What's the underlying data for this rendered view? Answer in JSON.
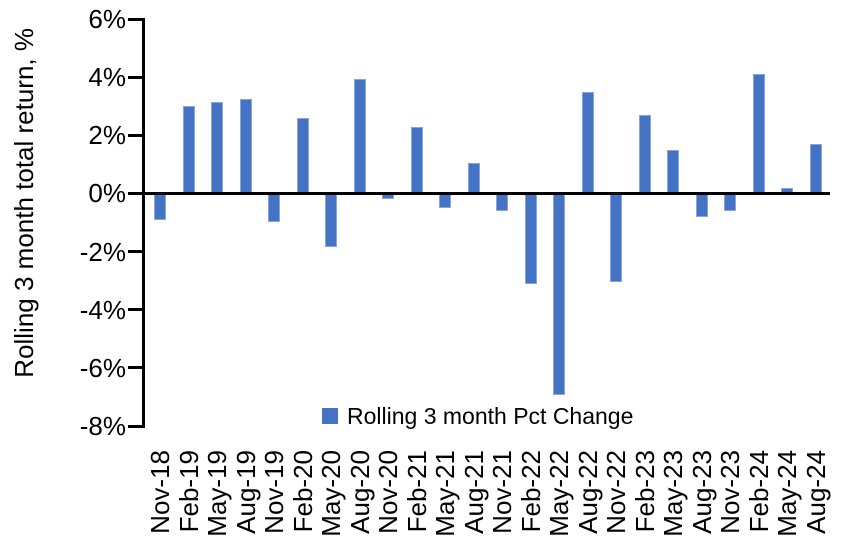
{
  "chart_data": {
    "type": "bar",
    "title": "",
    "ylabel": "Rolling 3 month total return, %",
    "xlabel": "",
    "categories": [
      "Nov-18",
      "Feb-19",
      "May-19",
      "Aug-19",
      "Nov-19",
      "Feb-20",
      "May-20",
      "Aug-20",
      "Nov-20",
      "Feb-21",
      "May-21",
      "Aug-21",
      "Nov-21",
      "Feb-22",
      "May-22",
      "Aug-22",
      "Nov-22",
      "Feb-23",
      "May-23",
      "Aug-23",
      "Nov-23",
      "Feb-24",
      "May-24",
      "Aug-24"
    ],
    "series": [
      {
        "name": "Rolling 3 month Pct Change",
        "values": [
          -0.9,
          3.0,
          3.15,
          3.25,
          -1.0,
          2.6,
          -1.85,
          3.95,
          -0.2,
          2.3,
          -0.5,
          1.05,
          -0.6,
          -3.1,
          -6.95,
          3.5,
          -3.05,
          2.7,
          1.5,
          -0.8,
          -0.6,
          4.1,
          0.2,
          1.7
        ]
      }
    ],
    "ylim": [
      -8,
      6
    ],
    "yticks": [
      {
        "label": "6%",
        "value": 6
      },
      {
        "label": "4%",
        "value": 4
      },
      {
        "label": "2%",
        "value": 2
      },
      {
        "label": "0%",
        "value": 0
      },
      {
        "label": "-2%",
        "value": -2
      },
      {
        "label": "-4%",
        "value": -4
      },
      {
        "label": "-6%",
        "value": -6
      },
      {
        "label": "-8%",
        "value": -8
      }
    ],
    "grid": false,
    "legend_position": "bottom-center",
    "bar_color": "#4472C4",
    "bar_edge_color": "#8AA5DA",
    "axis_color": "#000000",
    "text_color": "#000000",
    "background": "#FFFFFF"
  }
}
